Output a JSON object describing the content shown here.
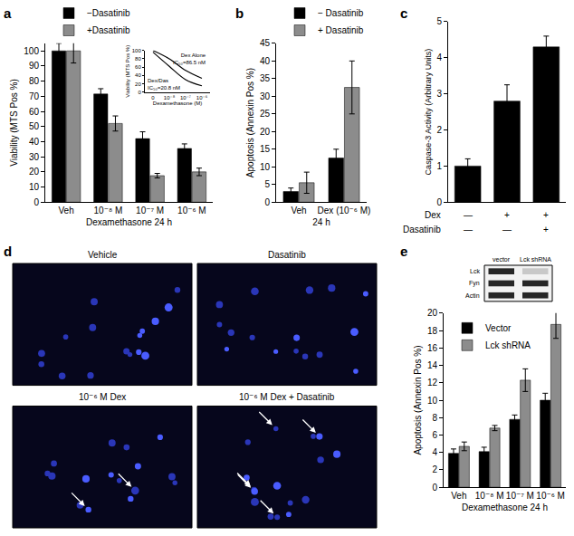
{
  "chart_data": [
    {
      "type": "bar",
      "title": "a",
      "y_label": "Viability (MTS Pos %)",
      "x_label": "Dexamethasone 24 h",
      "categories": [
        "Veh",
        "10⁻⁸ M",
        "10⁻⁷ M",
        "10⁻⁶ M"
      ],
      "series": [
        {
          "name": "−Dasatinib",
          "color": "#000000",
          "values": [
            100,
            71.5,
            42,
            35.5
          ],
          "errors": [
            5,
            3.5,
            4.5,
            3
          ]
        },
        {
          "name": "+Dasatinib",
          "color": "#8c8c8c",
          "values": [
            100,
            52,
            17.5,
            20
          ],
          "errors": [
            8,
            5,
            1.5,
            2.5
          ]
        }
      ],
      "ylim": [
        0,
        105
      ],
      "yticks": [
        0,
        10,
        20,
        30,
        40,
        50,
        60,
        70,
        80,
        90,
        100
      ],
      "legend": "top left",
      "inset": {
        "type": "line",
        "y_label": "Viability (MTS Pos %)",
        "x_label": "Dexamethasone (M)",
        "categories": [
          "0",
          "10⁻⁸",
          "10⁻⁷",
          "10⁻⁶"
        ],
        "series": [
          {
            "name": "Dex Alone",
            "note": "IC₅₀=86.5 nM",
            "color": "#000000",
            "values": [
              100,
              80,
              52,
              33
            ]
          },
          {
            "name": "Dex/Das",
            "note": "IC₅₀=20.8 nM",
            "color": "#000000",
            "values": [
              96,
              62,
              30,
              15
            ]
          }
        ],
        "ylim": [
          0,
          100
        ],
        "yticks": [
          0,
          20,
          40,
          60,
          80,
          100
        ]
      }
    },
    {
      "type": "bar",
      "title": "b",
      "y_label": "Apoptosis (Annexin Pos %)",
      "x_label": "24 h",
      "categories": [
        "Veh",
        "Dex (10⁻⁶ M)"
      ],
      "series": [
        {
          "name": "− Dasatinib",
          "color": "#000000",
          "values": [
            3,
            12.5
          ],
          "errors": [
            1,
            2.5
          ]
        },
        {
          "name": "+ Dasatinib",
          "color": "#8c8c8c",
          "values": [
            5.5,
            32.5
          ],
          "errors": [
            3,
            7.5
          ]
        }
      ],
      "ylim": [
        0,
        45
      ],
      "yticks": [
        0,
        5,
        10,
        15,
        20,
        25,
        30,
        35,
        40,
        45
      ],
      "legend": "top left"
    },
    {
      "type": "bar",
      "title": "c",
      "y_label": "Caspase-3 Activity (Arbitrary Units)",
      "categories": [
        null,
        null,
        null
      ],
      "values": [
        1,
        2.8,
        4.3
      ],
      "errors": [
        0.2,
        0.45,
        0.3
      ],
      "color": "#000000",
      "ylim": [
        0,
        5
      ],
      "yticks": [
        0,
        1,
        2,
        3,
        4,
        5
      ],
      "condition_rows": [
        {
          "label": "Dex",
          "marks": [
            "—",
            "+",
            "+"
          ]
        },
        {
          "label": "Dasatinib",
          "marks": [
            "—",
            "—",
            "+"
          ]
        }
      ]
    },
    {
      "type": "micrograph",
      "title": "d",
      "panels": [
        {
          "label": "Vehicle",
          "arrows": 0
        },
        {
          "label": "Dasatinib",
          "arrows": 0
        },
        {
          "label": "10⁻⁶ M Dex",
          "arrows": 2
        },
        {
          "label": "10⁻⁶ M Dex + Dasatinib",
          "arrows": 5
        }
      ]
    },
    {
      "type": "bar",
      "title": "e",
      "y_label": "Apoptosis (Annexin Pos %)",
      "x_label": "Dexamethasone 24 h",
      "categories": [
        "Veh",
        "10⁻⁸ M",
        "10⁻⁷ M",
        "10⁻⁶ M"
      ],
      "series": [
        {
          "name": "Vector",
          "color": "#000000",
          "values": [
            3.9,
            4.1,
            7.8,
            10
          ],
          "errors": [
            0.5,
            0.5,
            0.5,
            0.8
          ]
        },
        {
          "name": "Lck shRNA",
          "color": "#8c8c8c",
          "values": [
            4.7,
            6.8,
            12.3,
            18.7
          ],
          "errors": [
            0.5,
            0.3,
            1.3,
            1.6
          ]
        }
      ],
      "ylim": [
        0,
        20
      ],
      "yticks": [
        0,
        2,
        4,
        6,
        8,
        10,
        12,
        14,
        16,
        18,
        20
      ],
      "legend": "upper left",
      "blot": {
        "lanes": [
          "vector",
          "Lck shRNA"
        ],
        "bands": [
          "Lck",
          "Fyn",
          "Actin"
        ]
      }
    }
  ]
}
